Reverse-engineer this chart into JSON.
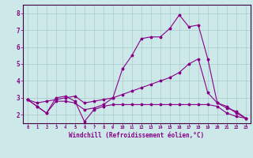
{
  "xlabel": "Windchill (Refroidissement éolien,°C)",
  "bg_color": "#cce8e8",
  "grid_color": "#aacccc",
  "line_color": "#880088",
  "spine_color": "#440044",
  "x_ticks": [
    0,
    1,
    2,
    3,
    4,
    5,
    6,
    7,
    8,
    9,
    10,
    11,
    12,
    13,
    14,
    15,
    16,
    17,
    18,
    19,
    20,
    21,
    22,
    23
  ],
  "y_ticks": [
    2,
    3,
    4,
    5,
    6,
    7,
    8
  ],
  "ylim": [
    1.5,
    8.5
  ],
  "xlim": [
    -0.5,
    23.5
  ],
  "curves": [
    {
      "x": [
        0,
        1,
        2,
        3,
        4,
        5,
        6,
        7,
        8,
        9,
        10,
        11,
        12,
        13,
        14,
        15,
        16,
        17,
        18,
        19,
        20,
        21,
        22,
        23
      ],
      "y": [
        2.9,
        2.5,
        2.1,
        3.0,
        3.1,
        2.8,
        1.6,
        2.3,
        2.5,
        2.6,
        2.6,
        2.6,
        2.6,
        2.6,
        2.6,
        2.6,
        2.6,
        2.6,
        2.6,
        2.6,
        2.5,
        2.1,
        1.9,
        1.8
      ]
    },
    {
      "x": [
        0,
        1,
        2,
        3,
        4,
        5,
        6,
        7,
        8,
        9,
        10,
        11,
        12,
        13,
        14,
        15,
        16,
        17,
        18,
        19,
        20,
        21,
        22,
        23
      ],
      "y": [
        2.9,
        2.7,
        2.8,
        2.9,
        3.0,
        3.1,
        2.7,
        2.8,
        2.9,
        3.0,
        3.2,
        3.4,
        3.6,
        3.8,
        4.0,
        4.2,
        4.5,
        5.0,
        5.3,
        3.3,
        2.7,
        2.4,
        2.2,
        1.8
      ]
    },
    {
      "x": [
        0,
        1,
        2,
        3,
        4,
        5,
        6,
        7,
        8,
        9,
        10,
        11,
        12,
        13,
        14,
        15,
        16,
        17,
        18,
        19,
        20,
        21,
        22,
        23
      ],
      "y": [
        2.9,
        2.5,
        2.1,
        2.8,
        2.8,
        2.7,
        2.3,
        2.4,
        2.6,
        3.0,
        4.7,
        5.5,
        6.5,
        6.6,
        6.6,
        7.1,
        7.9,
        7.2,
        7.3,
        5.3,
        2.7,
        2.5,
        2.1,
        1.8
      ]
    }
  ]
}
